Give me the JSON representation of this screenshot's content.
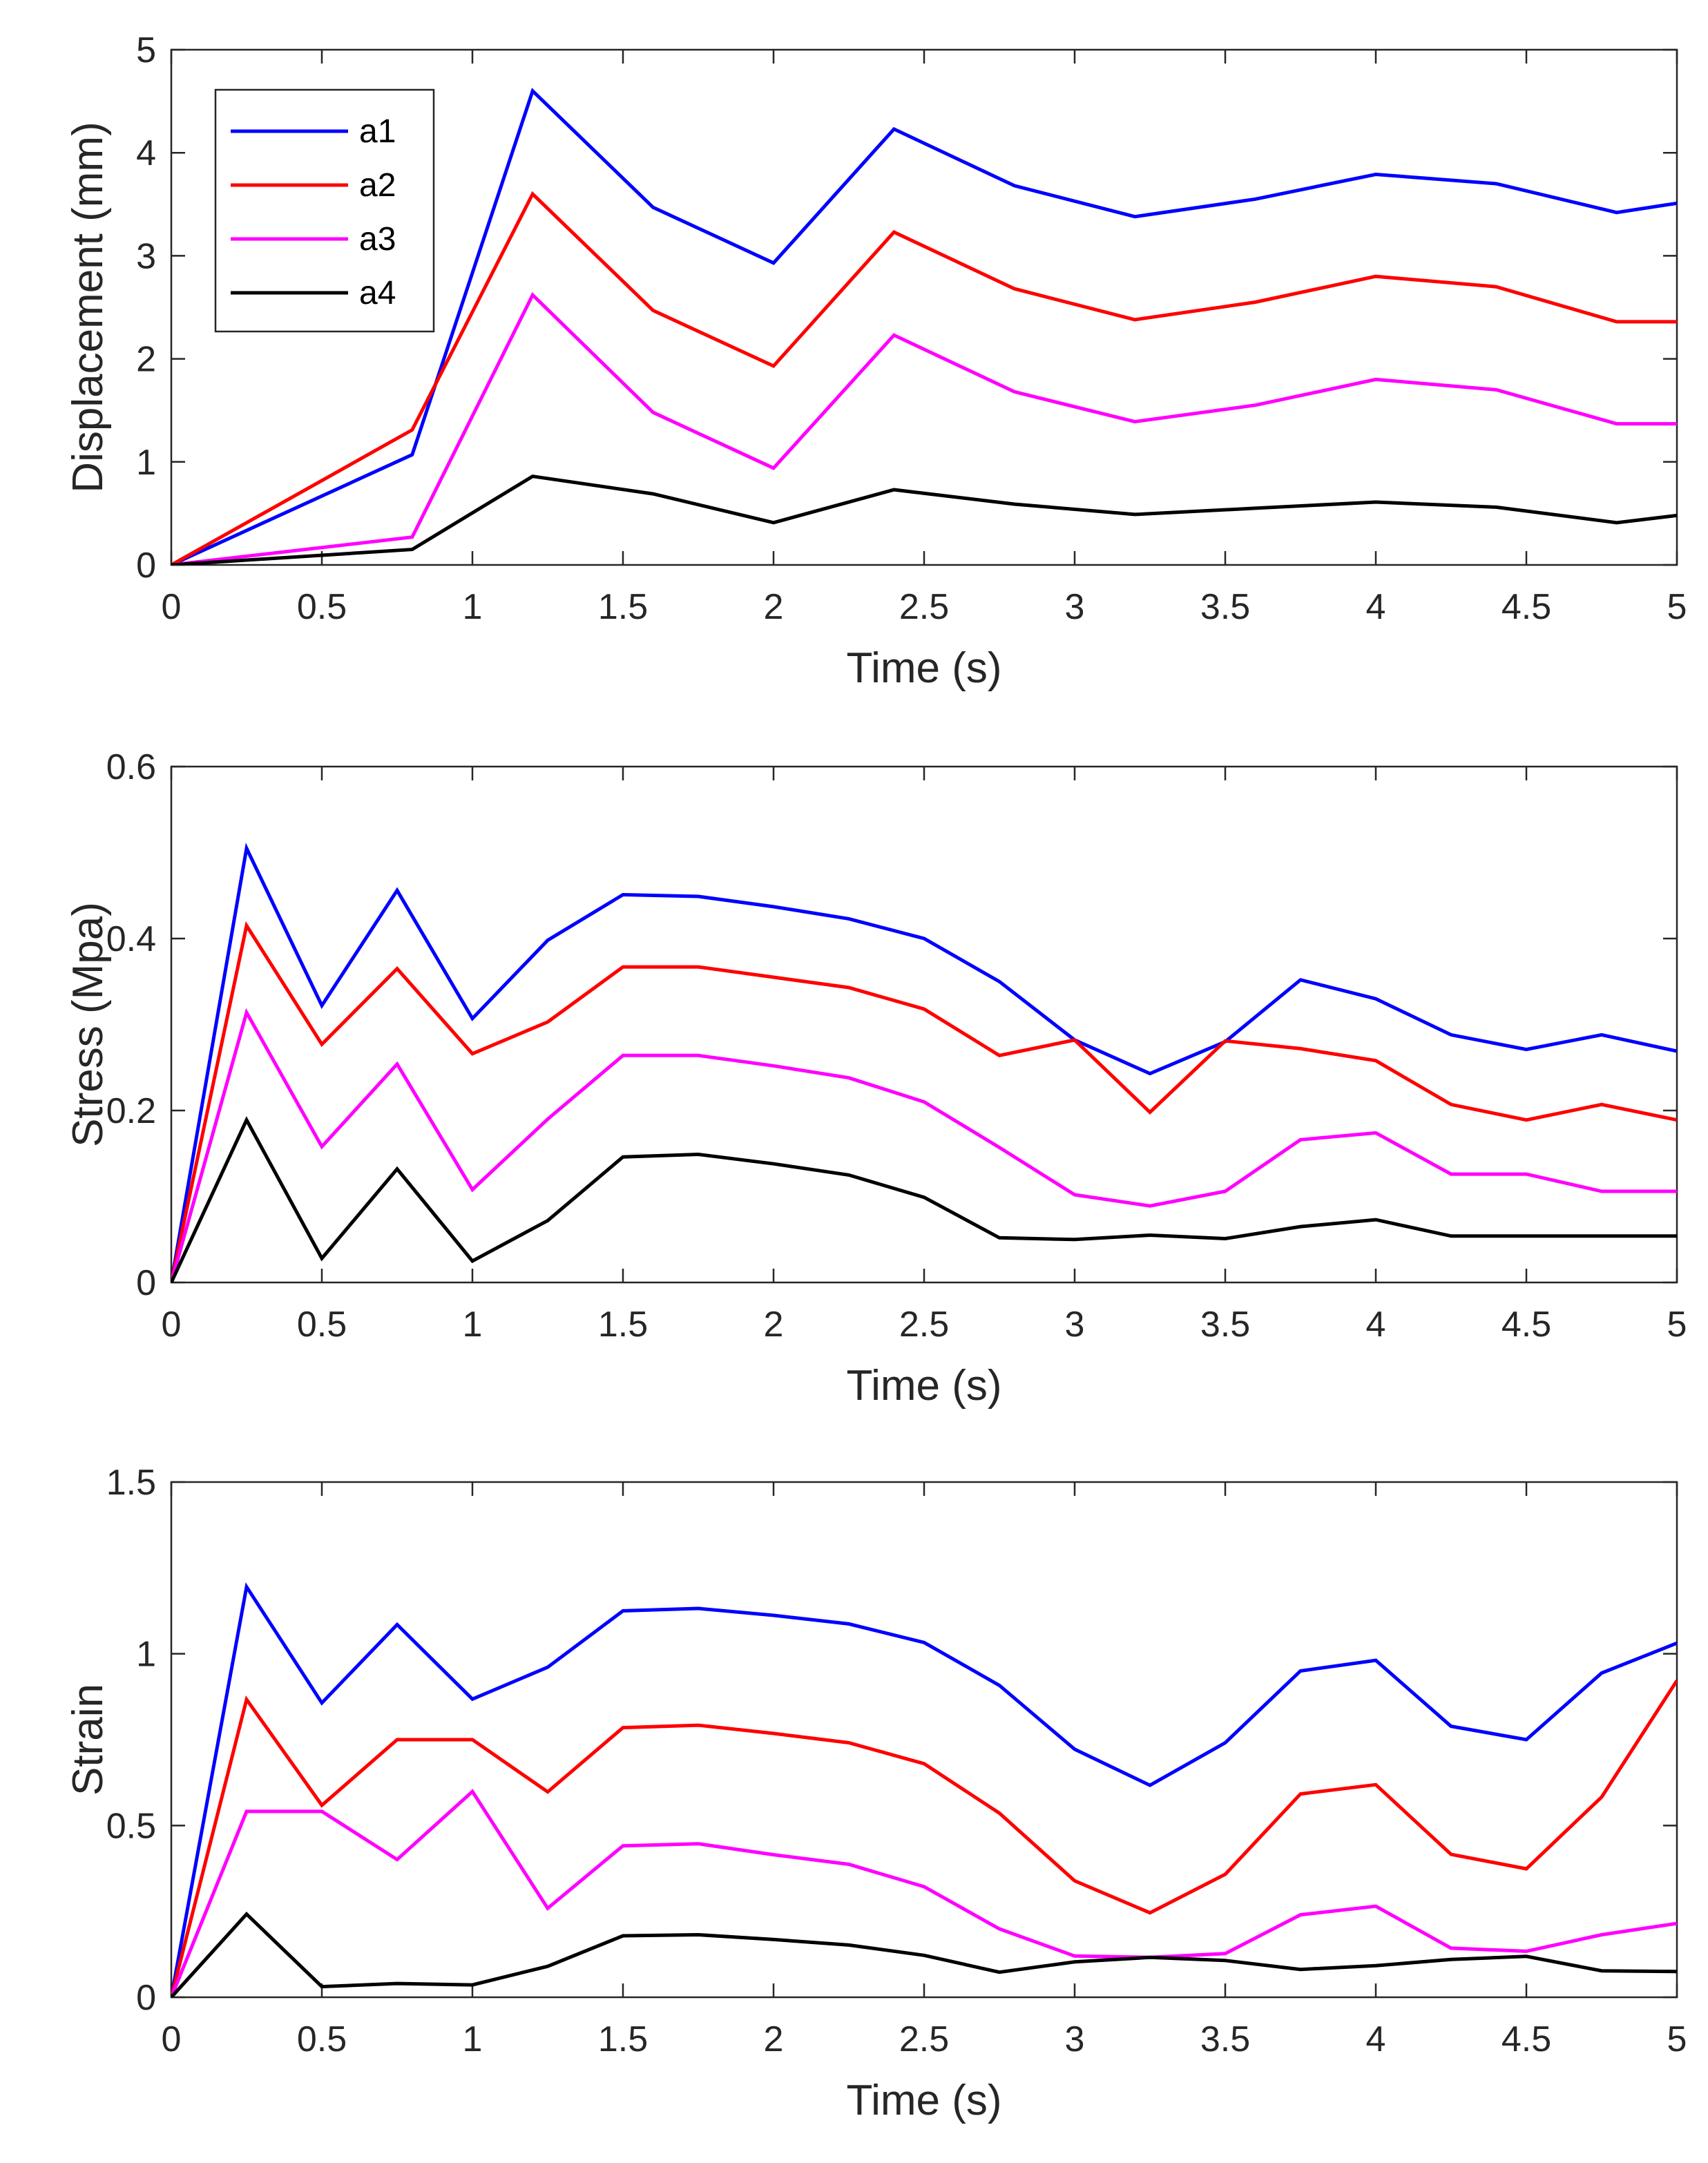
{
  "chart_data": [
    {
      "type": "line",
      "xlabel": "Time (s)",
      "ylabel": "Displacement (mm)",
      "xlim": [
        0,
        5
      ],
      "ylim": [
        0,
        5
      ],
      "xticks": [
        "0",
        "0.5",
        "1",
        "1.5",
        "2",
        "2.5",
        "3",
        "3.5",
        "4",
        "4.5",
        "5"
      ],
      "yticks": [
        "0",
        "1",
        "2",
        "3",
        "4",
        "5"
      ],
      "grid": false,
      "legend": "top-left",
      "x": [
        0,
        0.8,
        1.2,
        1.6,
        2.0,
        2.4,
        2.8,
        3.2,
        3.6,
        4.0,
        4.4,
        4.8,
        5.0
      ],
      "series": [
        {
          "name": "a1",
          "color": "#0000ff",
          "values": [
            0,
            1.07,
            4.6,
            3.47,
            2.93,
            4.23,
            3.68,
            3.38,
            3.55,
            3.79,
            3.7,
            3.42,
            3.51
          ]
        },
        {
          "name": "a2",
          "color": "#ff0000",
          "values": [
            0,
            1.31,
            3.6,
            2.47,
            1.93,
            3.23,
            2.68,
            2.38,
            2.55,
            2.8,
            2.7,
            2.36,
            2.36
          ]
        },
        {
          "name": "a3",
          "color": "#ff00ff",
          "values": [
            0,
            0.27,
            2.62,
            1.48,
            0.94,
            2.23,
            1.68,
            1.39,
            1.55,
            1.8,
            1.7,
            1.37,
            1.37
          ]
        },
        {
          "name": "a4",
          "color": "#000000",
          "values": [
            0,
            0.15,
            0.86,
            0.69,
            0.41,
            0.73,
            0.59,
            0.49,
            0.55,
            0.61,
            0.56,
            0.41,
            0.48
          ]
        }
      ]
    },
    {
      "type": "line",
      "xlabel": "Time (s)",
      "ylabel": "Stress (Mpa)",
      "xlim": [
        0,
        5
      ],
      "ylim": [
        0,
        0.6
      ],
      "xticks": [
        "0",
        "0.5",
        "1",
        "1.5",
        "2",
        "2.5",
        "3",
        "3.5",
        "4",
        "4.5",
        "5"
      ],
      "yticks": [
        "0",
        "0.2",
        "0.4",
        "0.6"
      ],
      "grid": false,
      "x": [
        0,
        0.25,
        0.5,
        0.75,
        1.0,
        1.25,
        1.5,
        1.75,
        2.0,
        2.25,
        2.5,
        2.75,
        3.0,
        3.25,
        3.5,
        3.75,
        4.0,
        4.25,
        4.5,
        4.75,
        5.0
      ],
      "series": [
        {
          "name": "a1",
          "color": "#0000ff",
          "values": [
            0,
            0.505,
            0.322,
            0.456,
            0.307,
            0.398,
            0.451,
            0.449,
            0.437,
            0.423,
            0.4,
            0.35,
            0.282,
            0.243,
            0.28,
            0.352,
            0.33,
            0.288,
            0.271,
            0.288,
            0.269
          ]
        },
        {
          "name": "a2",
          "color": "#ff0000",
          "values": [
            0,
            0.415,
            0.277,
            0.365,
            0.266,
            0.303,
            0.367,
            0.367,
            0.355,
            0.343,
            0.318,
            0.264,
            0.282,
            0.198,
            0.281,
            0.272,
            0.258,
            0.207,
            0.189,
            0.207,
            0.189
          ]
        },
        {
          "name": "a3",
          "color": "#ff00ff",
          "values": [
            0,
            0.314,
            0.158,
            0.254,
            0.108,
            0.19,
            0.264,
            0.264,
            0.252,
            0.238,
            0.21,
            0.157,
            0.102,
            0.089,
            0.106,
            0.166,
            0.174,
            0.126,
            0.126,
            0.106,
            0.106
          ]
        },
        {
          "name": "a4",
          "color": "#000000",
          "values": [
            0,
            0.189,
            0.028,
            0.132,
            0.025,
            0.072,
            0.146,
            0.149,
            0.138,
            0.125,
            0.099,
            0.052,
            0.05,
            0.055,
            0.051,
            0.065,
            0.073,
            0.054,
            0.054,
            0.054,
            0.054
          ]
        }
      ]
    },
    {
      "type": "line",
      "xlabel": "Time (s)",
      "ylabel": "Strain",
      "xlim": [
        0,
        5
      ],
      "ylim": [
        0,
        1.5
      ],
      "xticks": [
        "0",
        "0.5",
        "1",
        "1.5",
        "2",
        "2.5",
        "3",
        "3.5",
        "4",
        "4.5",
        "5"
      ],
      "yticks": [
        "0",
        "0.5",
        "1",
        "1.5"
      ],
      "grid": false,
      "x": [
        0,
        0.25,
        0.5,
        0.75,
        1.0,
        1.25,
        1.5,
        1.75,
        2.0,
        2.25,
        2.5,
        2.75,
        3.0,
        3.25,
        3.5,
        3.75,
        4.0,
        4.25,
        4.5,
        4.75,
        5.0
      ],
      "series": [
        {
          "name": "a1",
          "color": "#0000ff",
          "values": [
            0,
            1.195,
            0.857,
            1.085,
            0.868,
            0.961,
            1.125,
            1.132,
            1.112,
            1.087,
            1.033,
            0.908,
            0.722,
            0.617,
            0.741,
            0.95,
            0.981,
            0.789,
            0.75,
            0.944,
            1.031
          ]
        },
        {
          "name": "a2",
          "color": "#ff0000",
          "values": [
            0,
            0.867,
            0.559,
            0.75,
            0.75,
            0.598,
            0.785,
            0.792,
            0.768,
            0.741,
            0.68,
            0.536,
            0.339,
            0.246,
            0.358,
            0.592,
            0.619,
            0.416,
            0.374,
            0.583,
            0.922
          ]
        },
        {
          "name": "a3",
          "color": "#ff00ff",
          "values": [
            0,
            0.541,
            0.541,
            0.401,
            0.599,
            0.259,
            0.441,
            0.447,
            0.415,
            0.387,
            0.322,
            0.199,
            0.12,
            0.116,
            0.127,
            0.24,
            0.265,
            0.143,
            0.134,
            0.182,
            0.215
          ]
        },
        {
          "name": "a4",
          "color": "#000000",
          "values": [
            0,
            0.242,
            0.031,
            0.04,
            0.036,
            0.09,
            0.179,
            0.182,
            0.168,
            0.152,
            0.122,
            0.073,
            0.103,
            0.116,
            0.107,
            0.081,
            0.092,
            0.11,
            0.119,
            0.077,
            0.075
          ]
        }
      ]
    }
  ]
}
